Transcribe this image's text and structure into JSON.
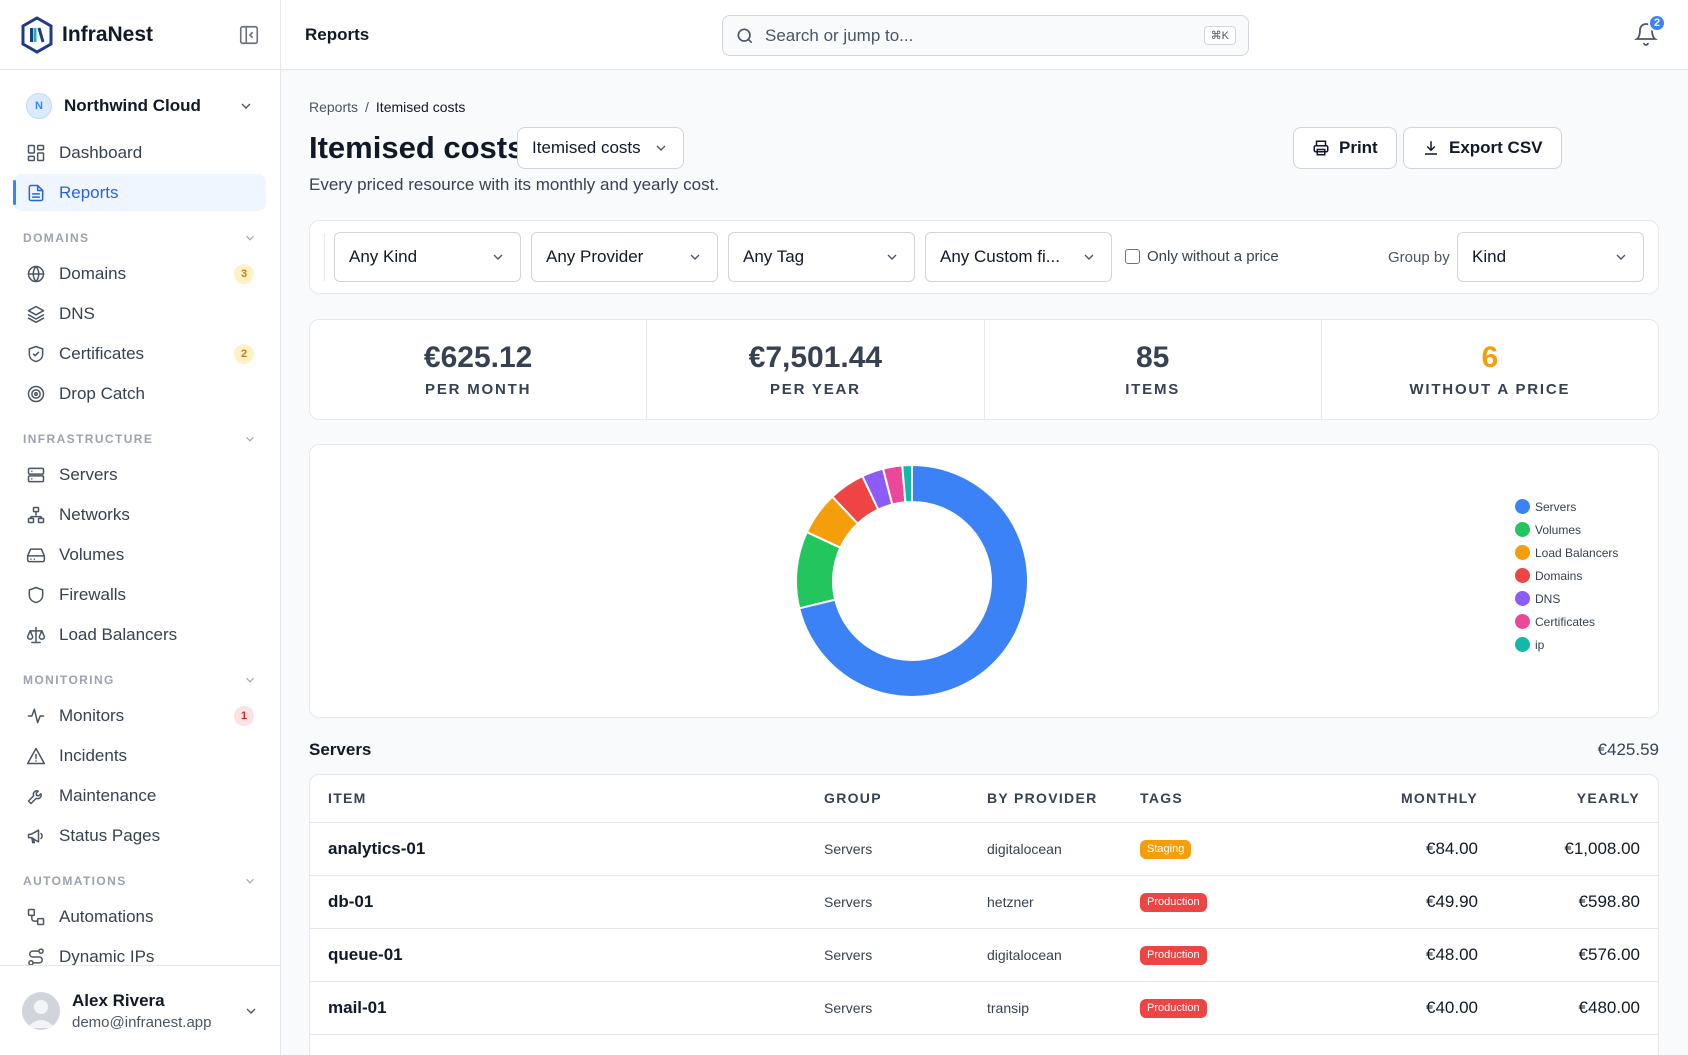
{
  "brand": {
    "name": "InfraNest"
  },
  "org": {
    "initial": "N",
    "name": "Northwind Cloud"
  },
  "nav": {
    "top": [
      {
        "label": "Dashboard",
        "icon": "dashboard-icon"
      },
      {
        "label": "Reports",
        "icon": "file-text-icon",
        "active": true
      }
    ],
    "sections": [
      {
        "title": "DOMAINS",
        "items": [
          {
            "label": "Domains",
            "icon": "globe-icon",
            "badge": "3",
            "badge_color": "amber"
          },
          {
            "label": "DNS",
            "icon": "layers-icon"
          },
          {
            "label": "Certificates",
            "icon": "shield-check-icon",
            "badge": "2",
            "badge_color": "amber"
          },
          {
            "label": "Drop Catch",
            "icon": "target-icon"
          }
        ]
      },
      {
        "title": "INFRASTRUCTURE",
        "items": [
          {
            "label": "Servers",
            "icon": "server-icon"
          },
          {
            "label": "Networks",
            "icon": "network-icon"
          },
          {
            "label": "Volumes",
            "icon": "hard-drive-icon"
          },
          {
            "label": "Firewalls",
            "icon": "shield-icon"
          },
          {
            "label": "Load Balancers",
            "icon": "scale-icon"
          }
        ]
      },
      {
        "title": "MONITORING",
        "items": [
          {
            "label": "Monitors",
            "icon": "activity-icon",
            "badge": "1",
            "badge_color": "red"
          },
          {
            "label": "Incidents",
            "icon": "alert-triangle-icon"
          },
          {
            "label": "Maintenance",
            "icon": "wrench-icon"
          },
          {
            "label": "Status Pages",
            "icon": "megaphone-icon"
          }
        ]
      },
      {
        "title": "AUTOMATIONS",
        "items": [
          {
            "label": "Automations",
            "icon": "workflow-icon"
          },
          {
            "label": "Dynamic IPs",
            "icon": "route-icon"
          }
        ]
      }
    ]
  },
  "user": {
    "name": "Alex Rivera",
    "email": "demo@infranest.app"
  },
  "topbar": {
    "title": "Reports",
    "search_placeholder": "Search or jump to...",
    "search_shortcut": "⌘K",
    "notification_count": "2"
  },
  "breadcrumb": {
    "parent": "Reports",
    "separator": "/",
    "current": "Itemised costs"
  },
  "page": {
    "title": "Itemised costs",
    "report_select": "Itemised costs",
    "subtitle": "Every priced resource with its monthly and yearly cost.",
    "print_label": "Print",
    "export_label": "Export CSV"
  },
  "filters": {
    "kind": "Any Kind",
    "provider": "Any Provider",
    "tag": "Any Tag",
    "custom": "Any Custom fi...",
    "only_without_price": "Only without a price",
    "group_by_label": "Group by",
    "group_by": "Kind"
  },
  "stats": [
    {
      "value": "€625.12",
      "label": "PER MONTH",
      "color": "#374151"
    },
    {
      "value": "€7,501.44",
      "label": "PER YEAR",
      "color": "#374151"
    },
    {
      "value": "85",
      "label": "ITEMS",
      "color": "#374151"
    },
    {
      "value": "6",
      "label": "WITHOUT A PRICE",
      "color": "#f59e0b"
    }
  ],
  "chart_data": {
    "type": "pie",
    "categories": [
      "Servers",
      "Volumes",
      "Load Balancers",
      "Domains",
      "DNS",
      "Certificates",
      "ip"
    ],
    "values": [
      425.59,
      64.0,
      36.0,
      30.0,
      18.0,
      16.0,
      8.0
    ],
    "colors": [
      "#3b82f6",
      "#22c55e",
      "#f59e0b",
      "#ef4444",
      "#8b5cf6",
      "#ec4899",
      "#14b8a6"
    ],
    "legend": "right"
  },
  "group": {
    "name": "Servers",
    "total": "€425.59"
  },
  "table": {
    "headers": {
      "item": "ITEM",
      "group": "GROUP",
      "provider": "BY PROVIDER",
      "tags": "TAGS",
      "monthly": "MONTHLY",
      "yearly": "YEARLY"
    },
    "rows": [
      {
        "item": "analytics-01",
        "group": "Servers",
        "provider": "digitalocean",
        "tag": "Staging",
        "tag_color": "#f59e0b",
        "monthly": "€84.00",
        "yearly": "€1,008.00"
      },
      {
        "item": "db-01",
        "group": "Servers",
        "provider": "hetzner",
        "tag": "Production",
        "tag_color": "#ef4444",
        "monthly": "€49.90",
        "yearly": "€598.80"
      },
      {
        "item": "queue-01",
        "group": "Servers",
        "provider": "digitalocean",
        "tag": "Production",
        "tag_color": "#ef4444",
        "monthly": "€48.00",
        "yearly": "€576.00"
      },
      {
        "item": "mail-01",
        "group": "Servers",
        "provider": "transip",
        "tag": "Production",
        "tag_color": "#ef4444",
        "monthly": "€40.00",
        "yearly": "€480.00"
      }
    ]
  }
}
